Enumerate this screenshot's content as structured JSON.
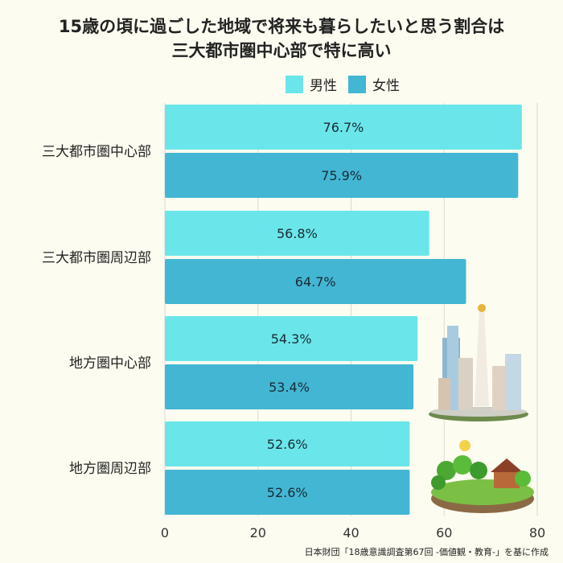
{
  "title_line1": "15歳の頃に過ごした地域で将来も暮らしたいと思う割合は",
  "title_line2": "三大都市圏中心部で特に高い",
  "source": "日本財団「18歳意識調査第67回 -価値観・教育-」を基に作成",
  "colors": {
    "male": "#6ae6ea",
    "female": "#43b6d4",
    "grid": "#d9d9d0"
  },
  "chart_data": {
    "type": "bar",
    "orientation": "horizontal",
    "categories": [
      "三大都市圏中心部",
      "三大都市圏周辺部",
      "地方圏中心部",
      "地方圏周辺部"
    ],
    "series": [
      {
        "name": "男性",
        "values": [
          76.7,
          56.8,
          54.3,
          52.6
        ]
      },
      {
        "name": "女性",
        "values": [
          75.9,
          64.7,
          53.4,
          52.6
        ]
      }
    ],
    "xlim": [
      0,
      80
    ],
    "xticks": [
      0,
      20,
      40,
      60,
      80
    ],
    "value_suffix": "%",
    "legend_position": "top-right",
    "grid": true
  }
}
